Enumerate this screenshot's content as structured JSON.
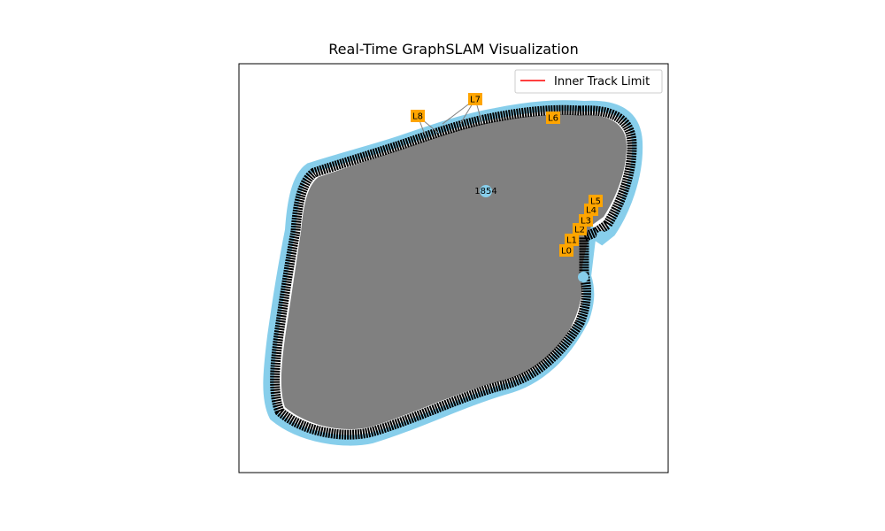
{
  "chart_data": {
    "type": "scatter",
    "title": "Real-Time GraphSLAM Visualization",
    "xlabel": "",
    "ylabel": "",
    "grid": false,
    "axis_ticks": false,
    "legend": {
      "placement": "top-right",
      "entries": [
        {
          "label": "Inner Track Limit",
          "color": "#ff0000",
          "marker": "line"
        }
      ]
    },
    "colors": {
      "pose_node": "#87ceeb",
      "landmark": "#ffa500",
      "edge": "#808080",
      "pose_edge": "#000000",
      "inner_track_limit": "#ff0000"
    },
    "current_pose_label": "1854",
    "landmarks": [
      {
        "label": "L0"
      },
      {
        "label": "L1"
      },
      {
        "label": "L2"
      },
      {
        "label": "L3"
      },
      {
        "label": "L4"
      },
      {
        "label": "L5"
      },
      {
        "label": "L6"
      },
      {
        "label": "L7"
      },
      {
        "label": "L8"
      }
    ]
  }
}
